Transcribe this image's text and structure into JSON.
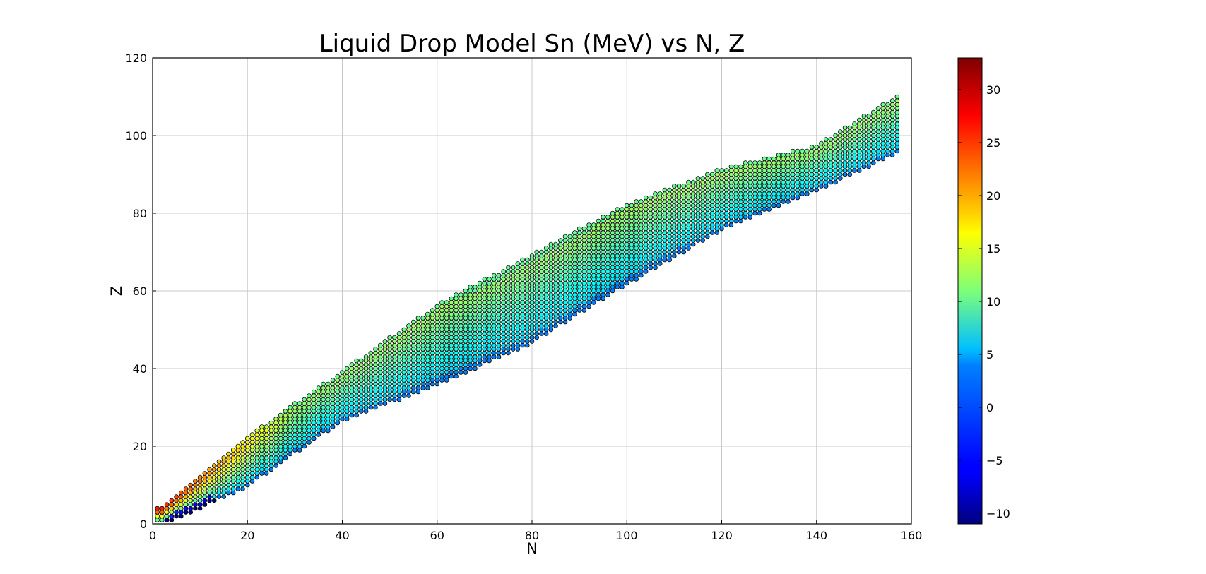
{
  "chart_data": {
    "type": "scatter",
    "title": "Liquid Drop Model Sn (MeV) vs N, Z",
    "xlabel": "N",
    "ylabel": "Z",
    "xlim": [
      0,
      160
    ],
    "ylim": [
      0,
      120
    ],
    "xticks": [
      "0",
      "20",
      "40",
      "60",
      "80",
      "100",
      "120",
      "140",
      "160"
    ],
    "yticks": [
      "0",
      "20",
      "40",
      "60",
      "80",
      "100",
      "120"
    ],
    "grid": true,
    "colormap": "jet",
    "colorbar": {
      "range": [
        -11,
        33
      ],
      "ticks": [
        "−10",
        "−5",
        "0",
        "5",
        "10",
        "15",
        "20",
        "25",
        "30"
      ],
      "tick_values": [
        -10,
        -5,
        0,
        5,
        10,
        15,
        20,
        25,
        30
      ]
    },
    "band": {
      "note_x": "N",
      "points": [
        [
          0,
          0
        ],
        [
          10,
          9
        ],
        [
          20,
          17
        ],
        [
          30,
          25
        ],
        [
          40,
          33
        ],
        [
          50,
          41
        ],
        [
          60,
          49
        ],
        [
          70,
          57
        ],
        [
          80,
          64
        ],
        [
          90,
          70
        ],
        [
          100,
          76
        ],
        [
          110,
          81
        ],
        [
          120,
          85
        ],
        [
          130,
          88
        ],
        [
          140,
          92
        ],
        [
          150,
          97
        ],
        [
          157,
          102
        ]
      ],
      "z_min_at": [
        [
          2,
          0
        ],
        [
          20,
          10
        ],
        [
          40,
          27
        ],
        [
          60,
          36
        ],
        [
          80,
          47
        ],
        [
          100,
          62
        ],
        [
          120,
          76
        ],
        [
          140,
          86
        ],
        [
          157,
          96
        ]
      ],
      "z_max_at": [
        [
          2,
          4
        ],
        [
          20,
          22
        ],
        [
          40,
          39
        ],
        [
          60,
          56
        ],
        [
          80,
          69
        ],
        [
          100,
          82
        ],
        [
          120,
          91
        ],
        [
          140,
          97
        ],
        [
          157,
          110
        ]
      ]
    }
  }
}
